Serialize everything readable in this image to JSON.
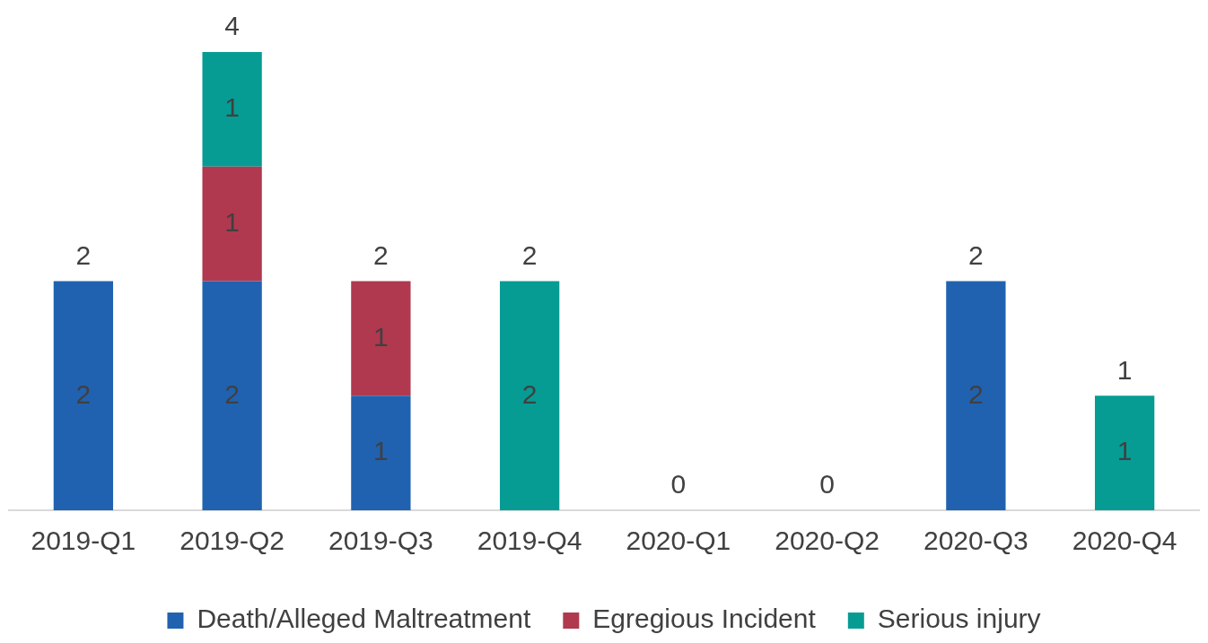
{
  "chart_data": {
    "type": "bar",
    "stacked": true,
    "categories": [
      "2019-Q1",
      "2019-Q2",
      "2019-Q3",
      "2019-Q4",
      "2020-Q1",
      "2020-Q2",
      "2020-Q3",
      "2020-Q4"
    ],
    "series": [
      {
        "name": "Death/Alleged Maltreatment",
        "color": "#2062b0",
        "values": [
          2,
          2,
          1,
          0,
          0,
          0,
          2,
          0
        ],
        "value_labels": [
          "2",
          "2",
          "1",
          null,
          null,
          null,
          "2",
          null
        ]
      },
      {
        "name": "Egregious Incident",
        "color": "#b0394f",
        "values": [
          0,
          1,
          1,
          0,
          0,
          0,
          0,
          0
        ],
        "value_labels": [
          null,
          "1",
          "1",
          null,
          null,
          null,
          null,
          null
        ]
      },
      {
        "name": "Serious injury",
        "color": "#069c94",
        "values": [
          0,
          1,
          0,
          2,
          0,
          0,
          0,
          1
        ],
        "value_labels": [
          null,
          "1",
          null,
          "2",
          null,
          null,
          null,
          "1"
        ]
      }
    ],
    "totals": [
      "2",
      "4",
      "2",
      "2",
      "0",
      "0",
      "2",
      "1"
    ],
    "grid": false,
    "legend": "bottom"
  }
}
